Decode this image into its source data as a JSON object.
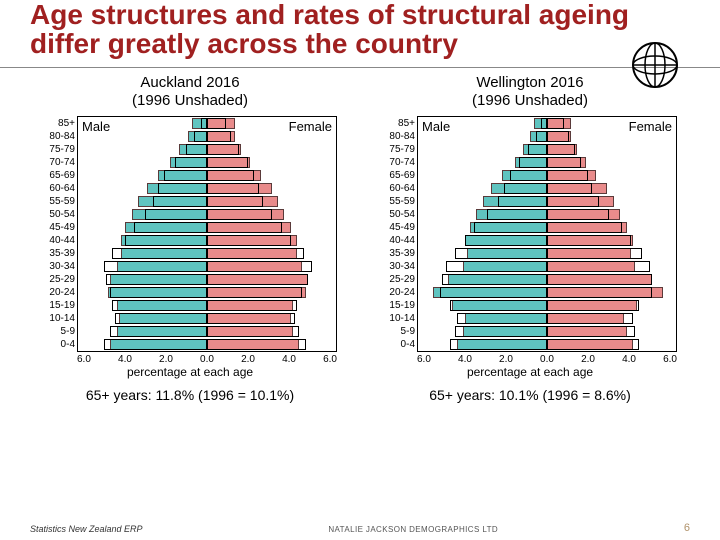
{
  "title": "Age structures and rates of structural ageing differ greatly across the country",
  "age_groups": [
    "85+",
    "80-84",
    "75-79",
    "70-74",
    "65-69",
    "60-64",
    "55-59",
    "50-54",
    "45-49",
    "40-44",
    "35-39",
    "30-34",
    "25-29",
    "20-24",
    "15-19",
    "10-14",
    "5-9",
    "0-4"
  ],
  "x_ticks": [
    "6.0",
    "4.0",
    "2.0",
    "0.0",
    "2.0",
    "4.0",
    "6.0"
  ],
  "x_axis_label": "percentage at each age",
  "x_max": 6.0,
  "colors": {
    "male_fill": "#5fc4c0",
    "female_fill": "#e98b8b",
    "bar_border": "#6b4a4a",
    "outline_1996": "#000000",
    "title_color": "#a02020",
    "background": "#ffffff",
    "footer_accent": "#b0926a"
  },
  "charts": [
    {
      "title_line1": "Auckland 2016",
      "title_line2": "(1996 Unshaded)",
      "male_label": "Male",
      "female_label": "Female",
      "caption": "65+ years: 11.8% (1996 = 10.1%)",
      "male_2016": [
        0.7,
        0.9,
        1.3,
        1.7,
        2.3,
        2.8,
        3.2,
        3.5,
        3.8,
        4.0,
        4.0,
        4.2,
        4.5,
        4.6,
        4.2,
        4.1,
        4.2,
        4.5
      ],
      "female_2016": [
        1.3,
        1.3,
        1.6,
        2.0,
        2.5,
        3.0,
        3.3,
        3.6,
        3.9,
        4.2,
        4.2,
        4.4,
        4.7,
        4.6,
        4.0,
        3.9,
        4.0,
        4.3
      ],
      "male_1996": [
        0.3,
        0.6,
        1.0,
        1.5,
        2.0,
        2.3,
        2.5,
        2.9,
        3.4,
        3.8,
        4.4,
        4.8,
        4.7,
        4.5,
        4.4,
        4.3,
        4.5,
        4.8
      ],
      "female_1996": [
        0.9,
        1.1,
        1.5,
        1.9,
        2.2,
        2.4,
        2.6,
        3.0,
        3.5,
        3.9,
        4.5,
        4.9,
        4.7,
        4.4,
        4.2,
        4.1,
        4.3,
        4.6
      ]
    },
    {
      "title_line1": "Wellington 2016",
      "title_line2": "(1996 Unshaded)",
      "male_label": "Male",
      "female_label": "Female",
      "caption": "65+ years: 10.1% (1996 = 8.6%)",
      "male_2016": [
        0.6,
        0.8,
        1.1,
        1.5,
        2.1,
        2.6,
        3.0,
        3.3,
        3.6,
        3.8,
        3.7,
        3.9,
        4.6,
        5.3,
        4.4,
        3.8,
        3.9,
        4.2
      ],
      "female_2016": [
        1.1,
        1.1,
        1.4,
        1.8,
        2.3,
        2.8,
        3.1,
        3.4,
        3.7,
        4.0,
        3.9,
        4.1,
        4.9,
        5.4,
        4.2,
        3.6,
        3.7,
        4.0
      ],
      "male_1996": [
        0.3,
        0.5,
        0.9,
        1.3,
        1.7,
        2.0,
        2.3,
        2.8,
        3.4,
        3.8,
        4.3,
        4.7,
        4.9,
        5.0,
        4.5,
        4.2,
        4.3,
        4.5
      ],
      "female_1996": [
        0.8,
        1.0,
        1.3,
        1.6,
        1.9,
        2.1,
        2.4,
        2.9,
        3.5,
        3.9,
        4.4,
        4.8,
        4.9,
        4.9,
        4.3,
        4.0,
        4.1,
        4.3
      ]
    }
  ],
  "footer": {
    "left": "Statistics New Zealand ERP",
    "center": "NATALIE JACKSON DEMOGRAPHICS LTD",
    "page": "6"
  }
}
